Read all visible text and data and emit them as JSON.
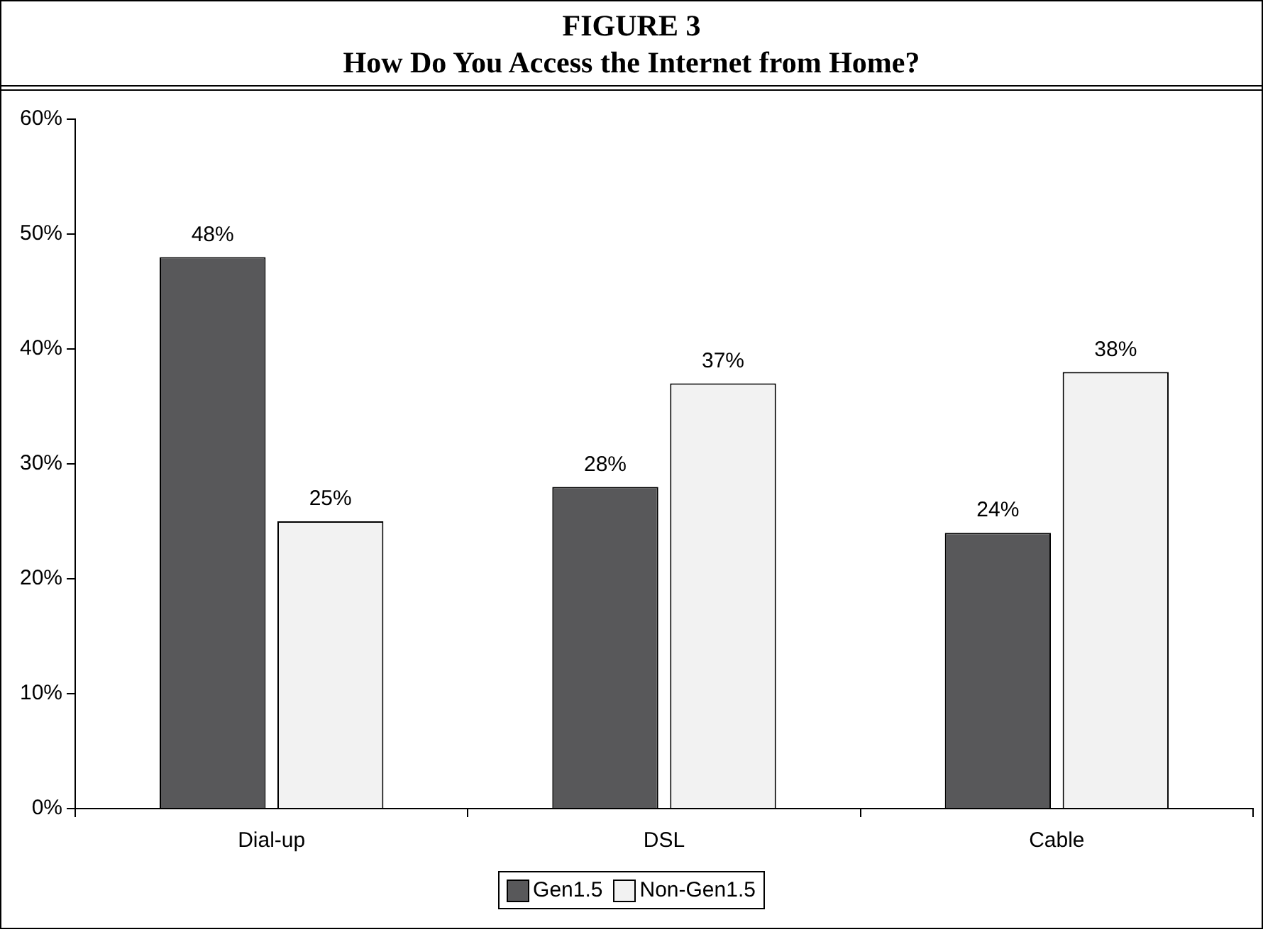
{
  "chart_data": {
    "type": "bar",
    "title": "FIGURE 3",
    "subtitle": "How Do You Access the Internet from Home?",
    "categories": [
      "Dial-up",
      "DSL",
      "Cable"
    ],
    "series": [
      {
        "name": "Gen1.5",
        "color": "#58585a",
        "values": [
          48,
          28,
          24
        ],
        "value_labels": [
          "48%",
          "28%",
          "24%"
        ]
      },
      {
        "name": "Non-Gen1.5",
        "color": "#f2f2f2",
        "values": [
          25,
          37,
          38
        ],
        "value_labels": [
          "25%",
          "37%",
          "38%"
        ]
      }
    ],
    "ylim": [
      0,
      60
    ],
    "yticks": [
      {
        "value": 0,
        "label": "0%"
      },
      {
        "value": 10,
        "label": "10%"
      },
      {
        "value": 20,
        "label": "20%"
      },
      {
        "value": 30,
        "label": "30%"
      },
      {
        "value": 40,
        "label": "40%"
      },
      {
        "value": 50,
        "label": "50%"
      },
      {
        "value": 60,
        "label": "60%"
      }
    ],
    "grid": false,
    "legend": "bottom"
  }
}
